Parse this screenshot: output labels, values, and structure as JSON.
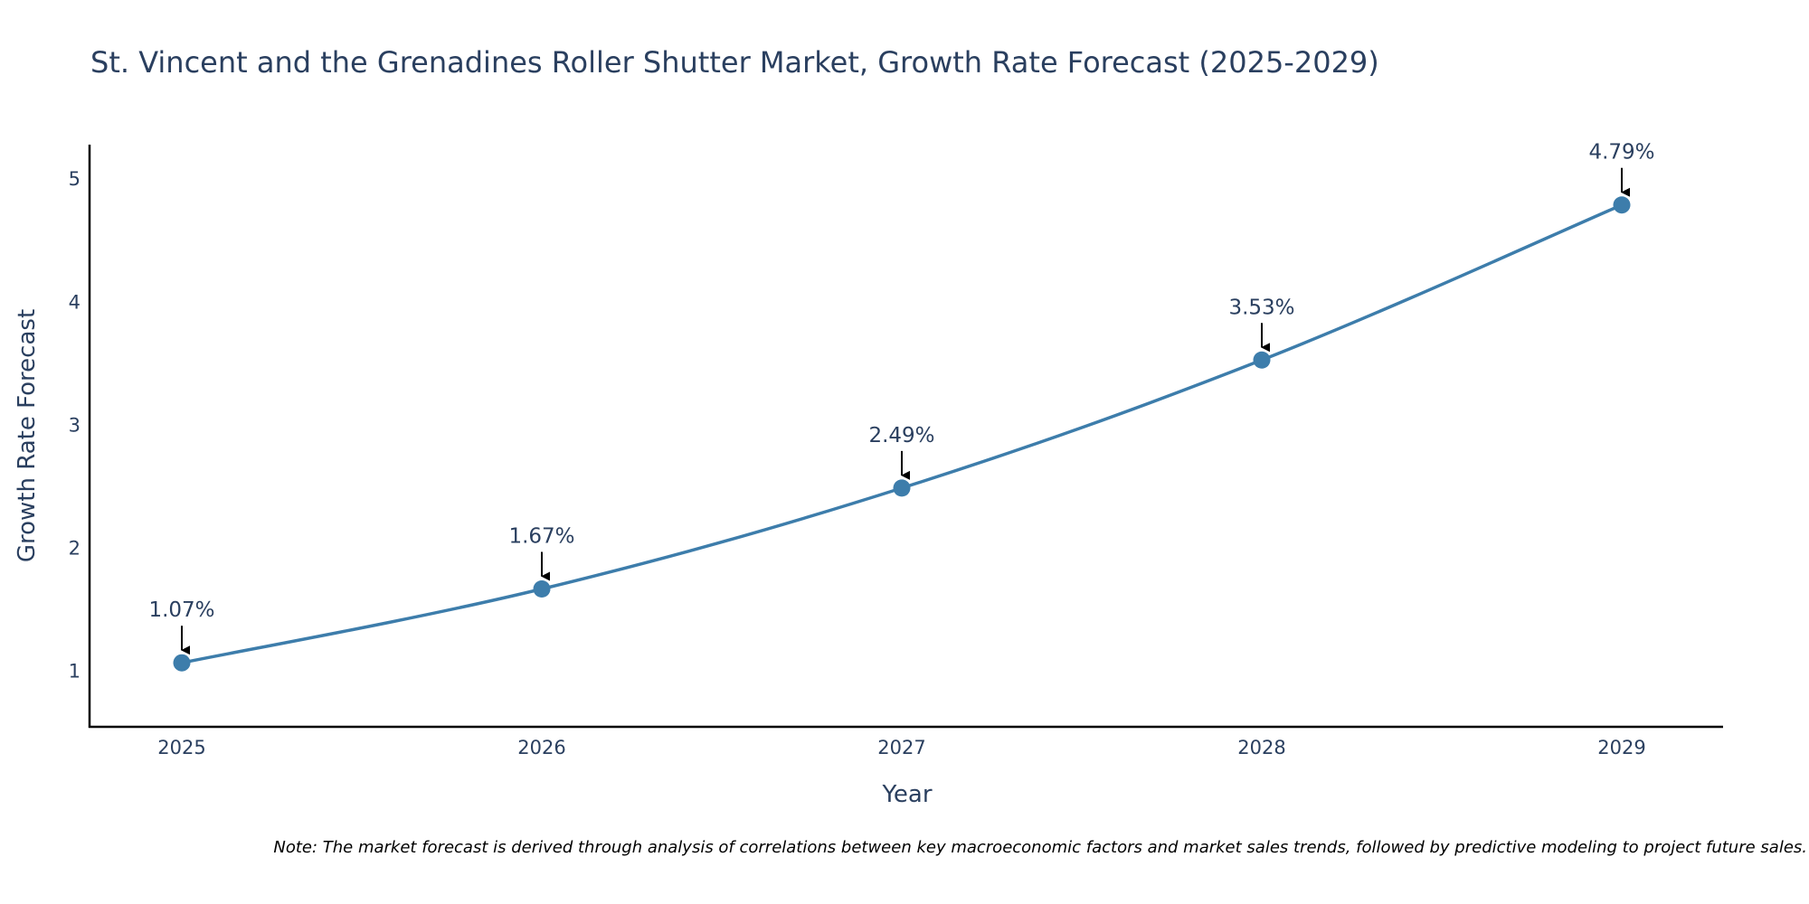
{
  "chart_data": {
    "type": "line",
    "title": "St. Vincent and the Grenadines Roller Shutter Market, Growth Rate Forecast (2025-2029)",
    "xlabel": "Year",
    "ylabel": "Growth Rate Forecast",
    "categories": [
      "2025",
      "2026",
      "2027",
      "2028",
      "2029"
    ],
    "series": [
      {
        "name": "Growth Rate Forecast",
        "values": [
          1.07,
          1.67,
          2.49,
          3.53,
          4.79
        ],
        "labels": [
          "1.07%",
          "1.67%",
          "2.49%",
          "3.53%",
          "4.79%"
        ]
      }
    ],
    "yticks": [
      "1",
      "2",
      "3",
      "4",
      "5"
    ],
    "ylim": [
      0.55,
      5.28
    ],
    "grid": false,
    "legend": "none",
    "line_shape": "spline",
    "colors": {
      "line": "#3d7dab",
      "marker": "#3d7dab",
      "arrow": "#000000",
      "axis": "#000000",
      "text": "#2a3f5f"
    },
    "note": "Note: The market forecast is derived through analysis of correlations between key macroeconomic factors and market sales trends, followed by predictive modeling to project future sales."
  }
}
